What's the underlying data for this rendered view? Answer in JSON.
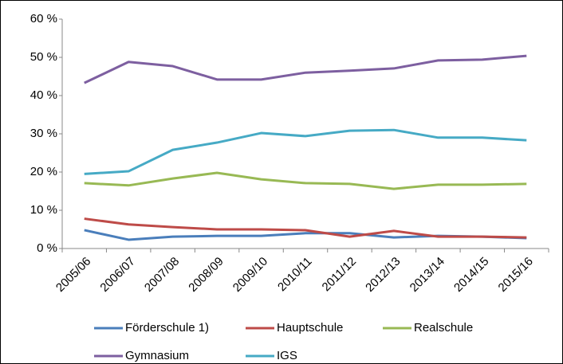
{
  "chart_data": {
    "type": "line",
    "categories": [
      "2005/06",
      "2006/07",
      "2007/08",
      "2008/09",
      "2009/10",
      "2010/11",
      "2011/12",
      "2012/13",
      "2013/14",
      "2014/15",
      "2015/16"
    ],
    "series": [
      {
        "name": "Förderschule 1)",
        "color": "#4a7ebb",
        "values": [
          4.8,
          2.3,
          3.1,
          3.3,
          3.3,
          4.0,
          4.0,
          2.9,
          3.3,
          3.1,
          2.7
        ]
      },
      {
        "name": "Hauptschule",
        "color": "#be4b48",
        "values": [
          7.8,
          6.3,
          5.6,
          5.0,
          5.0,
          4.8,
          3.1,
          4.6,
          3.1,
          3.1,
          2.9
        ]
      },
      {
        "name": "Realschule",
        "color": "#98b954",
        "values": [
          17.1,
          16.5,
          18.3,
          19.8,
          18.1,
          17.1,
          16.9,
          15.6,
          16.7,
          16.7,
          16.9
        ]
      },
      {
        "name": "Gymnasium",
        "color": "#7d5fa0",
        "values": [
          43.3,
          48.8,
          47.7,
          44.2,
          44.2,
          46.0,
          46.5,
          47.1,
          49.2,
          49.4,
          50.4
        ]
      },
      {
        "name": "IGS",
        "color": "#46aac5",
        "values": [
          19.5,
          20.2,
          25.8,
          27.7,
          30.2,
          29.4,
          30.8,
          31.0,
          29.0,
          29.0,
          28.3
        ]
      }
    ],
    "ylim": [
      0,
      60
    ],
    "yticks": [
      {
        "value": 0,
        "label": "0 %"
      },
      {
        "value": 10,
        "label": "10 %"
      },
      {
        "value": 20,
        "label": "20 %"
      },
      {
        "value": 30,
        "label": "30 %"
      },
      {
        "value": 40,
        "label": "40 %"
      },
      {
        "value": 50,
        "label": "50 %"
      },
      {
        "value": 60,
        "label": "60 %"
      }
    ]
  }
}
